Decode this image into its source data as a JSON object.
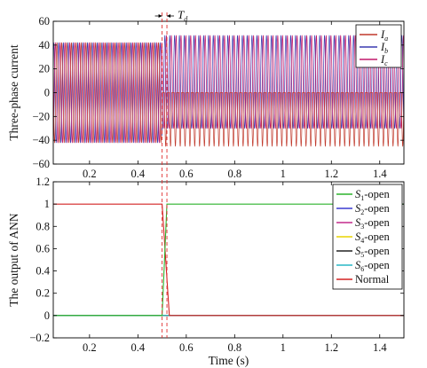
{
  "annotation": {
    "label_main": "T",
    "label_sub": "d"
  },
  "colors": {
    "Ia": "#c0392b",
    "Ib": "#3a3ab0",
    "Ic": "#c2186b",
    "S1": "#2bb32b",
    "S2": "#3b3bd0",
    "S3": "#c42a8c",
    "S4": "#e8d400",
    "S5": "#222222",
    "S6": "#29b7c6",
    "Normal": "#d32222",
    "vline": "#e03030"
  },
  "chart_data": [
    {
      "type": "line",
      "ylabel": "Three-phase current",
      "xlabel": "",
      "xlim": [
        0.05,
        1.5
      ],
      "ylim": [
        -60,
        60
      ],
      "xticks": [
        0.2,
        0.4,
        0.6,
        0.8,
        1,
        1.2,
        1.4
      ],
      "xtick_labels": [
        "0.2",
        "0.4",
        "0.6",
        "0.8",
        "1",
        "1.2",
        "1.4"
      ],
      "yticks": [
        -60,
        -40,
        -20,
        0,
        20,
        40,
        60
      ],
      "ytick_labels": [
        "−60",
        "−40",
        "−20",
        "0",
        "20",
        "40",
        "60"
      ],
      "grid": false,
      "legend_position": "top-right",
      "fault_time": 0.5,
      "detection_time": 0.52,
      "frequency_hz": 50,
      "amplitude_before": 42,
      "series": [
        {
          "name": "I",
          "sub": "a",
          "phase_deg": 0,
          "after_fault": {
            "pos": 0,
            "neg": -45
          }
        },
        {
          "name": "I",
          "sub": "b",
          "phase_deg": -120,
          "after_fault": {
            "pos": 48,
            "neg": -30
          }
        },
        {
          "name": "I",
          "sub": "c",
          "phase_deg": 120,
          "after_fault": {
            "pos": 48,
            "neg": -30
          }
        }
      ]
    },
    {
      "type": "line",
      "ylabel": "The output of ANN",
      "xlabel": "Time (s)",
      "xlim": [
        0.05,
        1.5
      ],
      "ylim": [
        -0.2,
        1.2
      ],
      "xticks": [
        0.2,
        0.4,
        0.6,
        0.8,
        1,
        1.2,
        1.4
      ],
      "xtick_labels": [
        "0.2",
        "0.4",
        "0.6",
        "0.8",
        "1",
        "1.2",
        "1.4"
      ],
      "yticks": [
        -0.2,
        0,
        0.2,
        0.4,
        0.6,
        0.8,
        1,
        1.2
      ],
      "ytick_labels": [
        "−0.2",
        "0",
        "0.2",
        "0.4",
        "0.6",
        "0.8",
        "1",
        "1.2"
      ],
      "grid": false,
      "legend_position": "top-right",
      "series": [
        {
          "name": "S",
          "sub": "1",
          "suffix": "-open",
          "points": [
            [
              0.05,
              0
            ],
            [
              0.5,
              0
            ],
            [
              0.52,
              1
            ],
            [
              1.5,
              1
            ]
          ]
        },
        {
          "name": "S",
          "sub": "2",
          "suffix": "-open",
          "points": [
            [
              0.05,
              0
            ],
            [
              1.5,
              0
            ]
          ]
        },
        {
          "name": "S",
          "sub": "3",
          "suffix": "-open",
          "points": [
            [
              0.05,
              0
            ],
            [
              1.5,
              0
            ]
          ]
        },
        {
          "name": "S",
          "sub": "4",
          "suffix": "-open",
          "points": [
            [
              0.05,
              0
            ],
            [
              1.5,
              0
            ]
          ]
        },
        {
          "name": "S",
          "sub": "5",
          "suffix": "-open",
          "points": [
            [
              0.05,
              0
            ],
            [
              1.5,
              0
            ]
          ]
        },
        {
          "name": "S",
          "sub": "6",
          "suffix": "-open",
          "points": [
            [
              0.05,
              0
            ],
            [
              1.5,
              0
            ]
          ]
        },
        {
          "name": "Normal",
          "sub": "",
          "suffix": "",
          "points": [
            [
              0.05,
              1
            ],
            [
              0.5,
              1
            ],
            [
              0.53,
              0
            ],
            [
              1.5,
              0
            ]
          ]
        }
      ]
    }
  ]
}
